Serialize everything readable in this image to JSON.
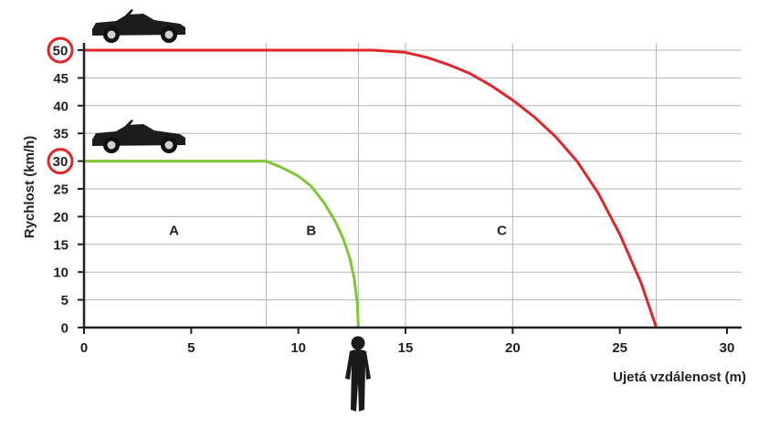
{
  "chart_data": {
    "type": "line",
    "xlabel": "Ujetá vzdálenost (m)",
    "ylabel": "Rychlost (km/h)",
    "xlim": [
      0,
      30
    ],
    "ylim": [
      0,
      50
    ],
    "xticks": [
      0,
      5,
      10,
      15,
      20,
      25,
      30
    ],
    "yticks": [
      0,
      5,
      10,
      15,
      20,
      25,
      30,
      35,
      40,
      45,
      50
    ],
    "highlighted_yticks": [
      30,
      50
    ],
    "grid": true,
    "vertical_gridlines_x": [
      8.5,
      12.8,
      15,
      20,
      26.7
    ],
    "zones": [
      {
        "label": "A",
        "x": 4.2,
        "y": 17.5
      },
      {
        "label": "B",
        "x": 10.6,
        "y": 17.5
      },
      {
        "label": "C",
        "x": 19.5,
        "y": 17.5
      }
    ],
    "series": [
      {
        "color": "#e0262a",
        "x": [
          0,
          13.5,
          15,
          16,
          17,
          18,
          19,
          20,
          21,
          22,
          23,
          24,
          25,
          26,
          26.7
        ],
        "y": [
          50,
          50,
          49.6,
          48.7,
          47.4,
          45.8,
          43.6,
          41,
          38,
          34.4,
          30,
          24.2,
          16.8,
          8,
          0
        ]
      },
      {
        "color": "#7dc832",
        "x": [
          0,
          8.5,
          9.2,
          10,
          10.6,
          11.2,
          11.7,
          12.1,
          12.4,
          12.6,
          12.75,
          12.8
        ],
        "y": [
          30,
          30,
          28.9,
          27.3,
          25.5,
          22.5,
          19.3,
          16,
          12.5,
          9,
          4.5,
          0
        ]
      }
    ]
  },
  "icons": {
    "car": "convertible-car-icon",
    "pedestrian": "pedestrian-icon",
    "axis_color": "#222222",
    "grid_color": "#b5b5b5",
    "highlight_ring_color": "#e0262a"
  }
}
